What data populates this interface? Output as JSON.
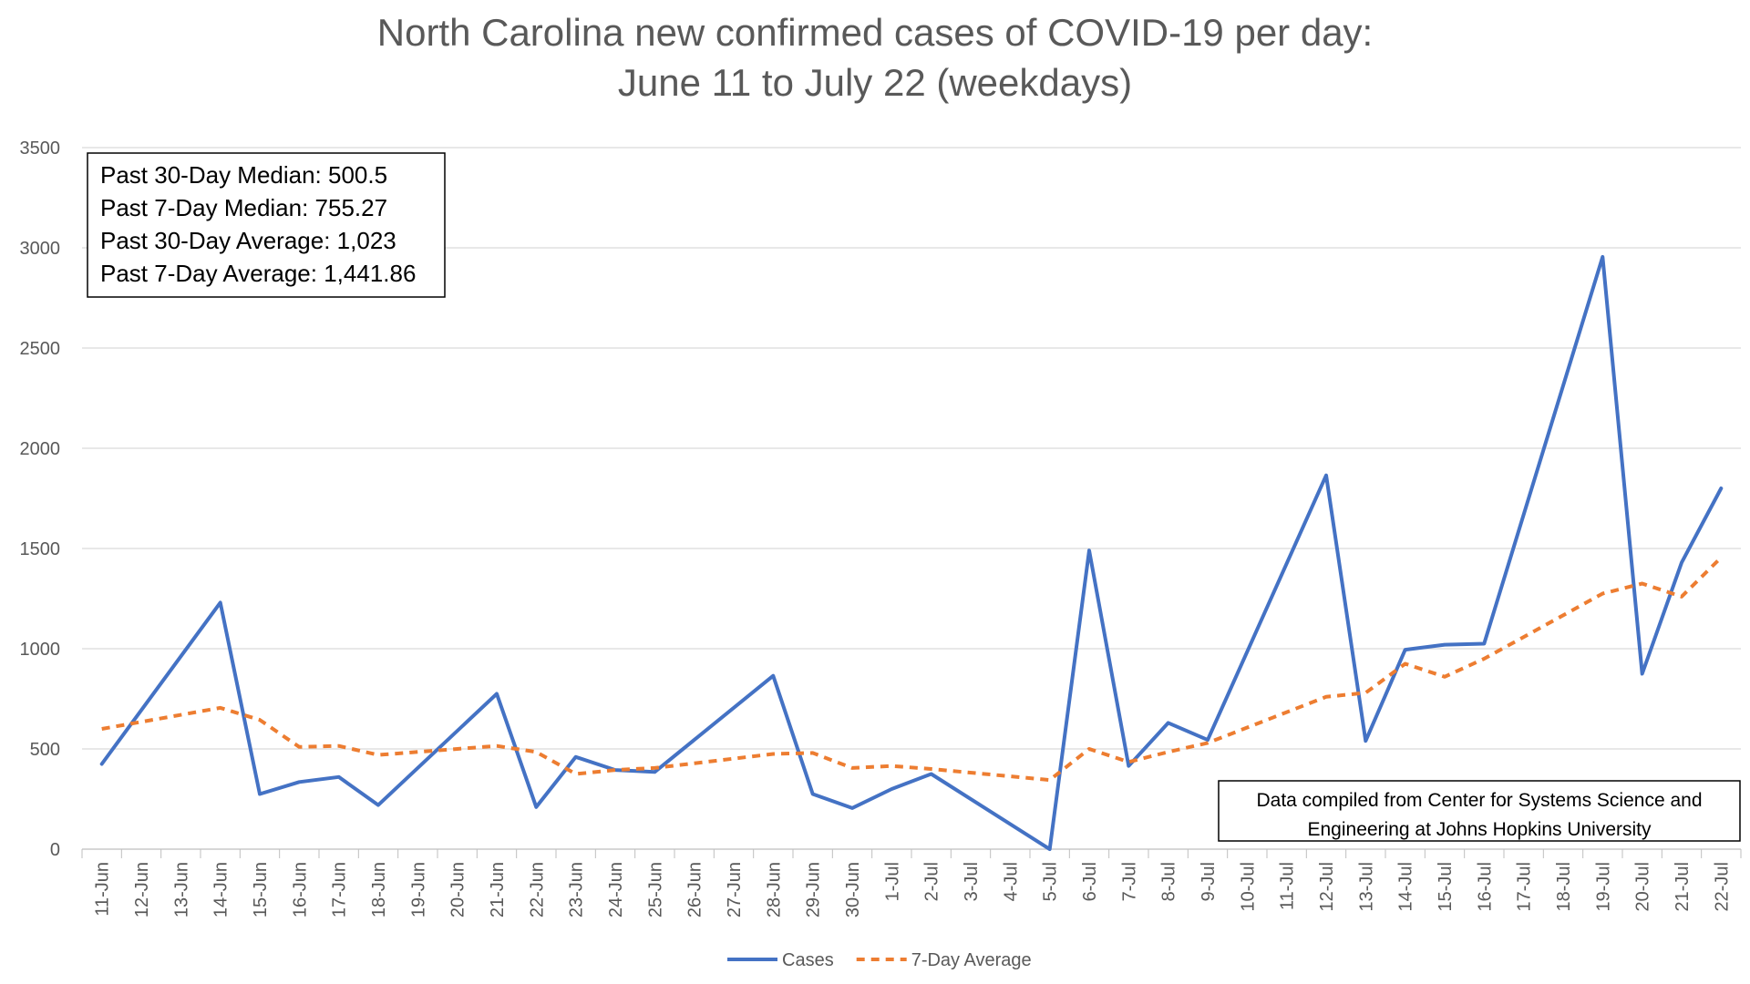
{
  "chart_data": {
    "type": "line",
    "title": "North Carolina new confirmed cases of COVID-19 per day:",
    "subtitle": "June 11 to July 22 (weekdays)",
    "xlabel": "",
    "ylabel": "",
    "ylim": [
      0,
      3500
    ],
    "yticks": [
      "0",
      "500",
      "1000",
      "1500",
      "2000",
      "2500",
      "3000",
      "3500"
    ],
    "grid": true,
    "legend_position": "bottom",
    "categories": [
      "11-Jun",
      "12-Jun",
      "13-Jun",
      "14-Jun",
      "15-Jun",
      "16-Jun",
      "17-Jun",
      "18-Jun",
      "19-Jun",
      "20-Jun",
      "21-Jun",
      "22-Jun",
      "23-Jun",
      "24-Jun",
      "25-Jun",
      "26-Jun",
      "27-Jun",
      "28-Jun",
      "29-Jun",
      "30-Jun",
      "1-Jul",
      "2-Jul",
      "3-Jul",
      "4-Jul",
      "5-Jul",
      "6-Jul",
      "7-Jul",
      "8-Jul",
      "9-Jul",
      "10-Jul",
      "11-Jul",
      "12-Jul",
      "13-Jul",
      "14-Jul",
      "15-Jul",
      "16-Jul",
      "17-Jul",
      "18-Jul",
      "19-Jul",
      "20-Jul",
      "21-Jul",
      "22-Jul"
    ],
    "series": [
      {
        "name": "Cases",
        "color": "#4472C4",
        "dash": "solid",
        "points": [
          [
            0,
            425
          ],
          [
            3,
            1230
          ],
          [
            4,
            275
          ],
          [
            5,
            335
          ],
          [
            6,
            360
          ],
          [
            7,
            220
          ],
          [
            10,
            775
          ],
          [
            11,
            210
          ],
          [
            12,
            460
          ],
          [
            13,
            395
          ],
          [
            14,
            385
          ],
          [
            17,
            865
          ],
          [
            18,
            275
          ],
          [
            19,
            205
          ],
          [
            20,
            300
          ],
          [
            21,
            375
          ],
          [
            24,
            0
          ],
          [
            25,
            1490
          ],
          [
            26,
            415
          ],
          [
            27,
            630
          ],
          [
            28,
            545
          ],
          [
            31,
            1865
          ],
          [
            32,
            540
          ],
          [
            33,
            995
          ],
          [
            34,
            1020
          ],
          [
            35,
            1025
          ],
          [
            38,
            2955
          ],
          [
            39,
            875
          ],
          [
            40,
            1430
          ],
          [
            41,
            1800
          ]
        ]
      },
      {
        "name": "7-Day Average",
        "color": "#ED7D31",
        "dash": "dashed",
        "points": [
          [
            0,
            600
          ],
          [
            3,
            705
          ],
          [
            4,
            645
          ],
          [
            5,
            510
          ],
          [
            6,
            515
          ],
          [
            7,
            470
          ],
          [
            8,
            485
          ],
          [
            9,
            500
          ],
          [
            10,
            515
          ],
          [
            11,
            485
          ],
          [
            12,
            375
          ],
          [
            13,
            395
          ],
          [
            14,
            405
          ],
          [
            17,
            475
          ],
          [
            18,
            480
          ],
          [
            19,
            405
          ],
          [
            20,
            415
          ],
          [
            21,
            400
          ],
          [
            24,
            345
          ],
          [
            25,
            500
          ],
          [
            26,
            435
          ],
          [
            27,
            485
          ],
          [
            28,
            530
          ],
          [
            31,
            760
          ],
          [
            32,
            780
          ],
          [
            33,
            925
          ],
          [
            34,
            860
          ],
          [
            35,
            950
          ],
          [
            38,
            1275
          ],
          [
            39,
            1325
          ],
          [
            40,
            1260
          ],
          [
            41,
            1455
          ]
        ]
      }
    ],
    "annotations": {
      "stats": [
        "Past 30-Day Median: 500.5",
        "Past 7-Day Median: 755.27",
        "Past 30-Day Average: 1,023",
        "Past 7-Day Average: 1,441.86"
      ],
      "source_lines": [
        "Data compiled from Center for Systems Science and",
        "Engineering at Johns Hopkins University"
      ]
    }
  }
}
